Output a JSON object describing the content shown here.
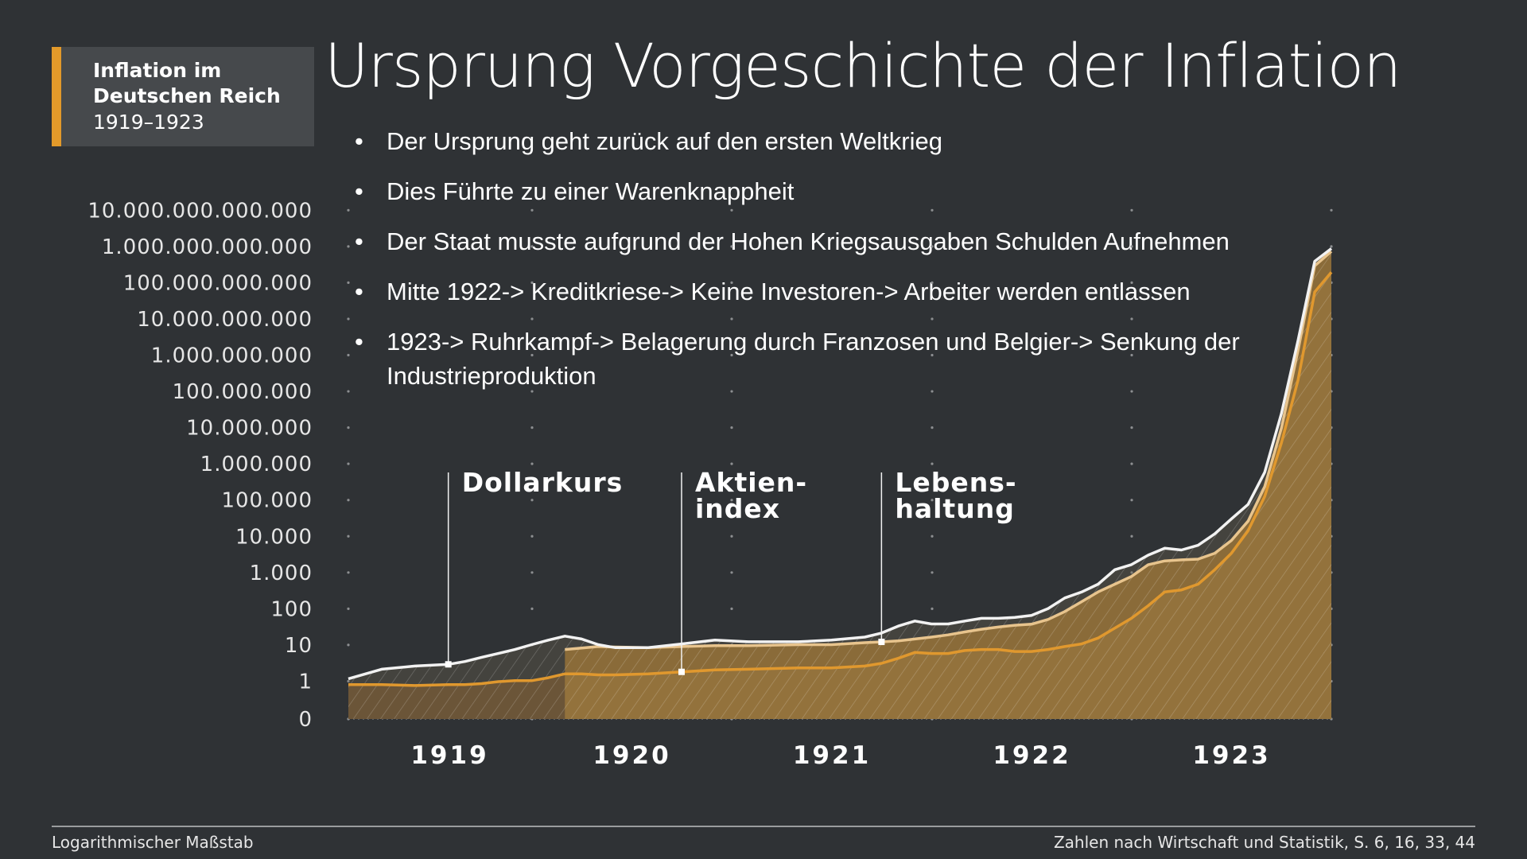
{
  "badge": {
    "line1": "Inflation im",
    "line2": "Deutschen Reich",
    "line3": "1919–1923",
    "accent": "#e39a2a"
  },
  "title": "Ursprung Vorgeschichte der Inflation",
  "bullets": [
    "Der Ursprung geht zurück auf den ersten Weltkrieg",
    "Dies Führte zu einer Warenknappheit",
    "Der Staat musste aufgrund der Hohen Kriegsausgaben Schulden Aufnehmen",
    "Mitte 1922-> Kreditkriese-> Keine Investoren-> Arbeiter werden entlassen",
    "1923-> Ruhrkampf-> Belagerung durch Franzosen und Belgier-> Senkung der Industrieproduktion"
  ],
  "footer": {
    "left": "Logarithmischer Maßstab",
    "right": "Zahlen nach Wirtschaft und Statistik, S. 6, 16, 33, 44"
  },
  "chart_data": {
    "type": "area",
    "yscale": "log",
    "grid": "dotted",
    "ytick_labels": [
      "0",
      "1",
      "10",
      "100",
      "1.000",
      "10.000",
      "100.000",
      "1.000.000",
      "10.000.000",
      "100.000.000",
      "1.000.000.000",
      "10.000.000.000",
      "100.000.000.000",
      "1.000.000.000.000",
      "10.000.000.000.000"
    ],
    "xtick_labels": [
      "1919",
      "1920",
      "1921",
      "1922",
      "1923"
    ],
    "x": [
      "1919-01",
      "1919-03",
      "1919-05",
      "1919-07",
      "1919-08",
      "1919-09",
      "1919-10",
      "1919-11",
      "1919-12",
      "1920-01",
      "1920-02",
      "1920-03",
      "1920-04",
      "1920-05",
      "1920-07",
      "1920-09",
      "1920-11",
      "1921-01",
      "1921-04",
      "1921-06",
      "1921-08",
      "1921-09",
      "1921-10",
      "1921-11",
      "1921-12",
      "1922-01",
      "1922-02",
      "1922-03",
      "1922-04",
      "1922-05",
      "1922-06",
      "1922-07",
      "1922-08",
      "1922-09",
      "1922-10",
      "1922-11",
      "1922-12",
      "1923-01",
      "1923-02",
      "1923-03",
      "1923-04",
      "1923-05",
      "1923-06",
      "1923-07",
      "1923-08",
      "1923-09",
      "1923-10",
      "1923-11",
      "1923-12"
    ],
    "series": [
      {
        "name": "Dollarkurs",
        "color": "#f2f2f2",
        "values": [
          1.2,
          2.2,
          2.7,
          3.0,
          3.6,
          4.7,
          6,
          7.7,
          10.5,
          14,
          18,
          15,
          10.5,
          8.7,
          8.7,
          11,
          14,
          12.6,
          12.6,
          14,
          17,
          22,
          34,
          47,
          39,
          39,
          47,
          56,
          56,
          59,
          67,
          104,
          204,
          296,
          490,
          1230,
          1700,
          3100,
          4800,
          4300,
          5800,
          12000,
          31000,
          78000,
          600000,
          25000000,
          2600000000,
          400000000000,
          900000000000
        ]
      },
      {
        "name": "Lebenshaltung",
        "color": "#e8c48d",
        "values": [
          null,
          null,
          null,
          null,
          null,
          null,
          null,
          null,
          null,
          null,
          7.7,
          8.5,
          9.3,
          9,
          8.7,
          9.3,
          9.8,
          9.8,
          10.5,
          10.5,
          11.9,
          12.5,
          13.4,
          15,
          17,
          19.5,
          23.5,
          28,
          32,
          36,
          38.5,
          52,
          86,
          160,
          300,
          490,
          800,
          1680,
          2150,
          2300,
          2400,
          3500,
          7900,
          27000,
          240000,
          10000000,
          1400000000,
          300000000000,
          750000000000
        ]
      },
      {
        "name": "Aktienindex",
        "color": "#e0982e",
        "values": [
          0.83,
          0.83,
          0.78,
          0.83,
          0.83,
          0.88,
          1.0,
          1.06,
          1.06,
          1.28,
          1.64,
          1.64,
          1.54,
          1.54,
          1.64,
          1.86,
          2.1,
          2.2,
          2.4,
          2.4,
          2.7,
          3.2,
          4.4,
          6.4,
          6.0,
          6.0,
          7.2,
          7.7,
          7.7,
          6.8,
          6.8,
          7.7,
          9.3,
          11,
          16,
          30,
          56,
          124,
          300,
          340,
          490,
          1230,
          3500,
          14600,
          130000,
          3900000,
          210000000,
          57000000000,
          200000000000
        ]
      }
    ],
    "annotations": [
      {
        "label_lines": [
          "Dollarkurs"
        ],
        "series": "Dollarkurs",
        "at": "1919-07"
      },
      {
        "label_lines": [
          "Aktien-",
          "index"
        ],
        "series": "Aktienindex",
        "at": "1920-09"
      },
      {
        "label_lines": [
          "Lebens-",
          "haltung"
        ],
        "series": "Lebenshaltung",
        "at": "1921-09"
      }
    ]
  }
}
